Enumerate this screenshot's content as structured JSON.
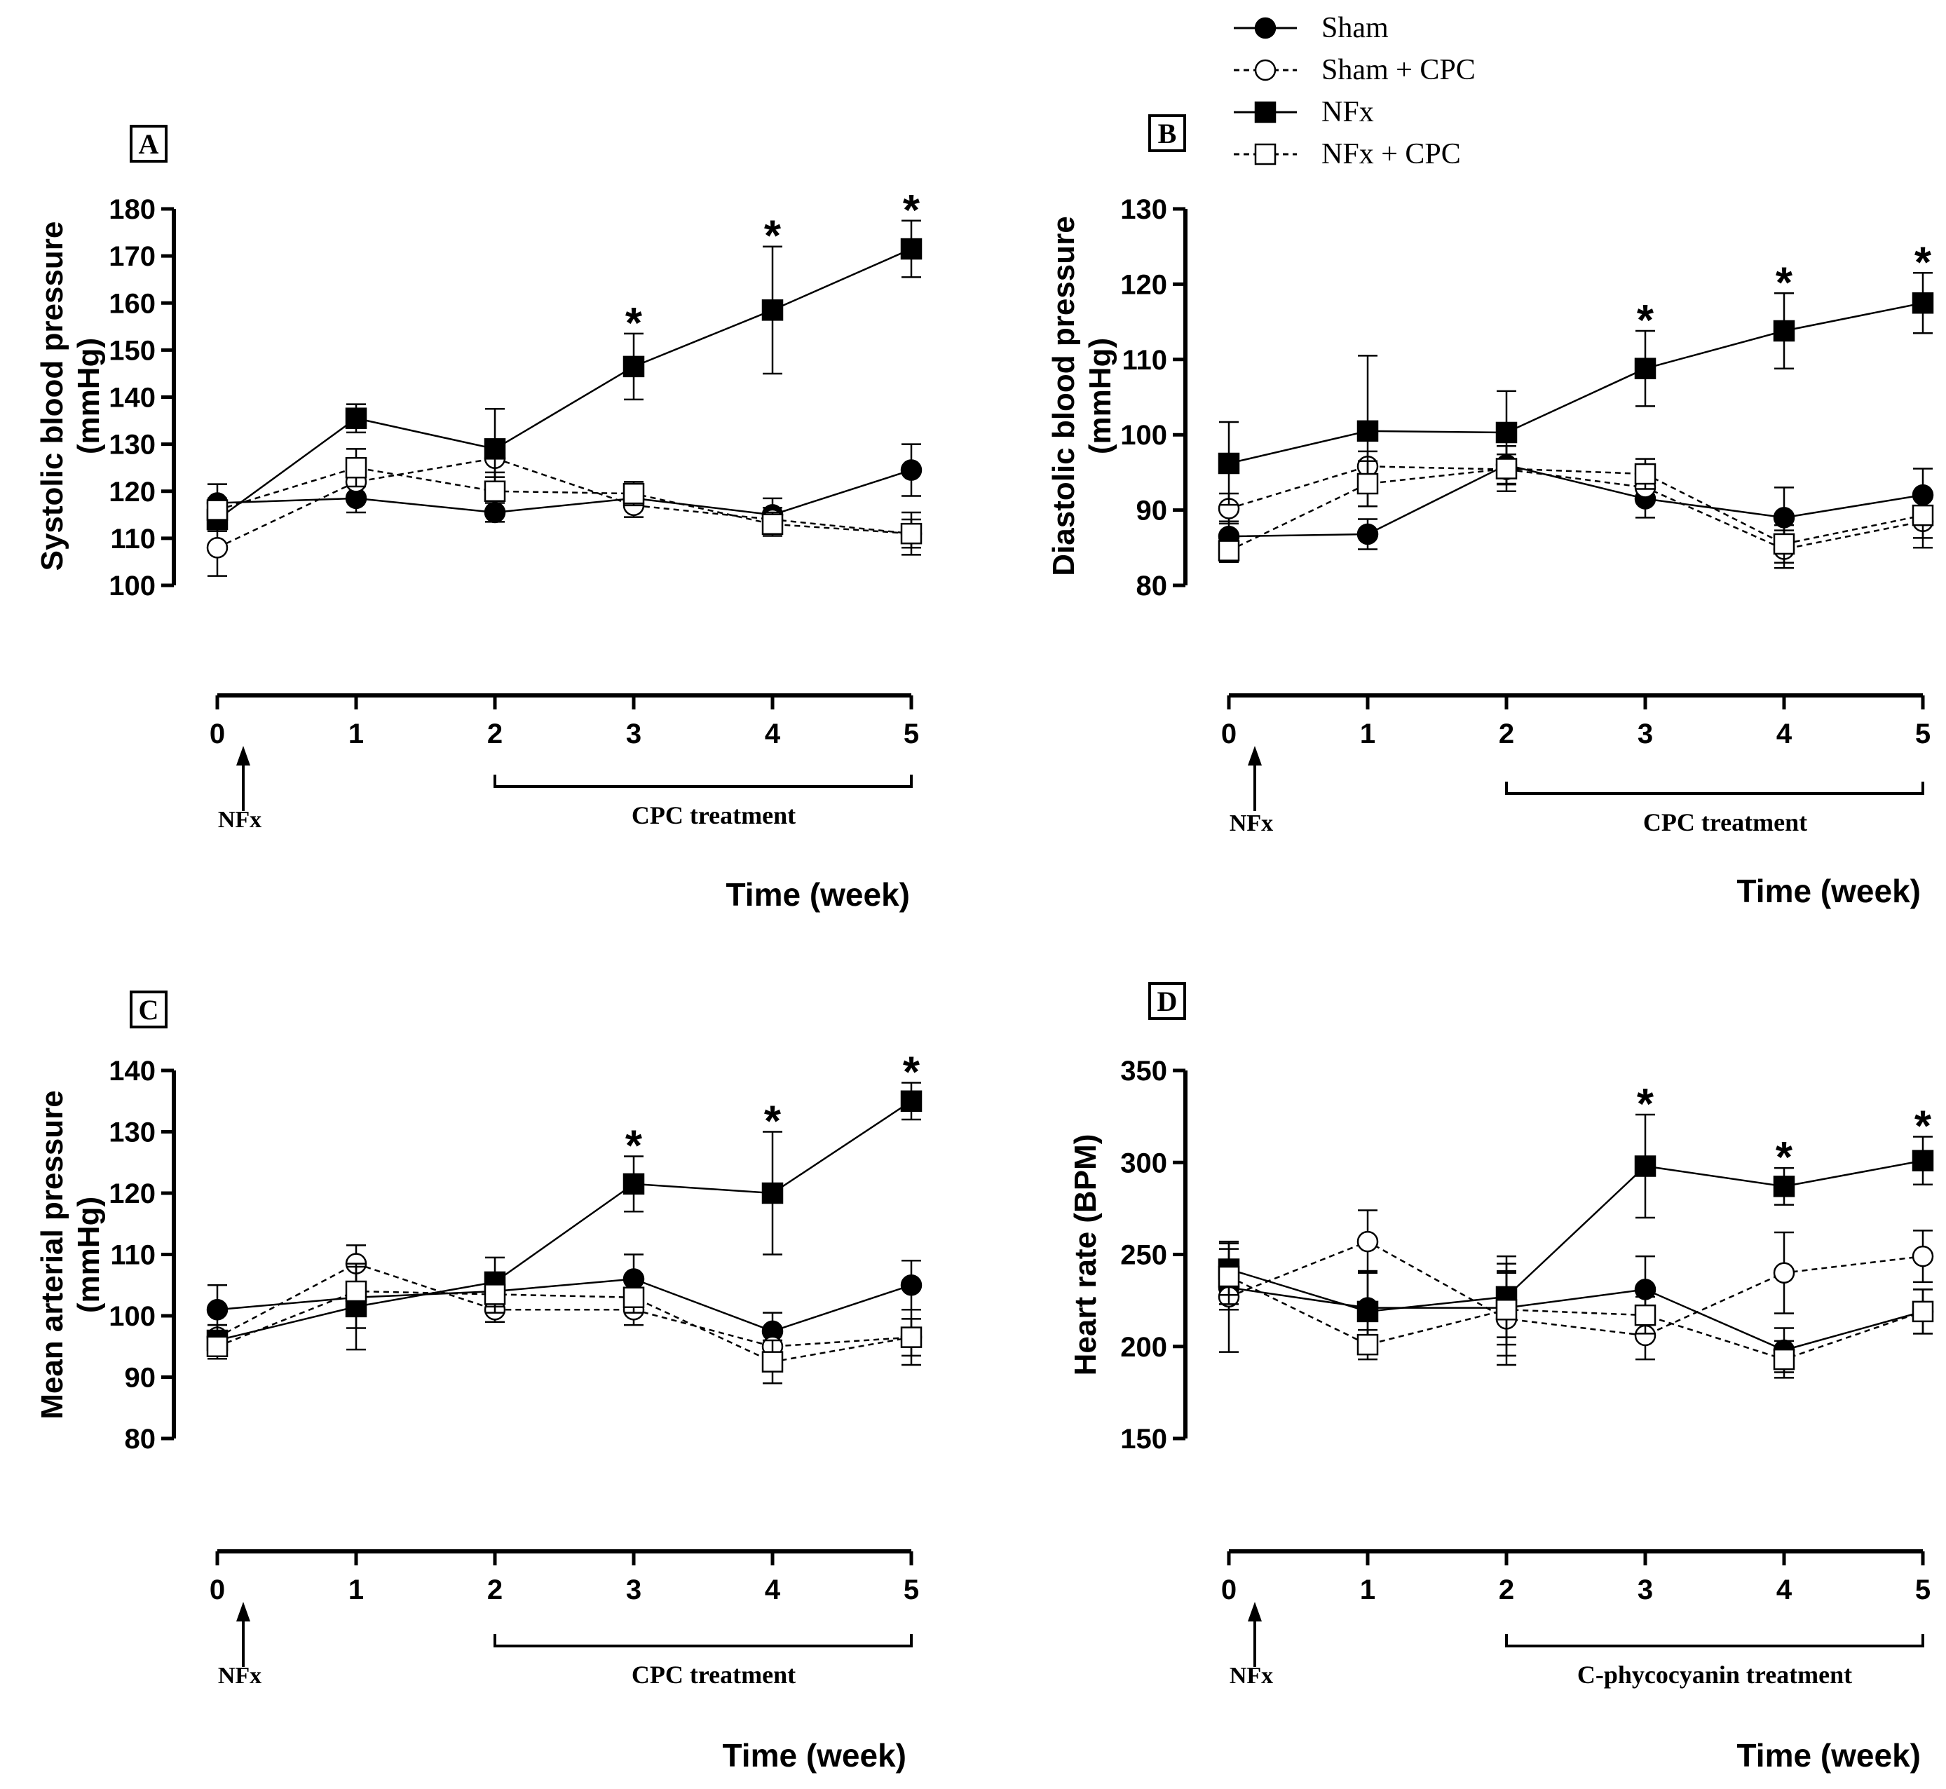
{
  "legend": [
    {
      "label": "Sham",
      "marker": "circle",
      "fill": "#000000",
      "line": "solid"
    },
    {
      "label": "Sham + CPC",
      "marker": "circle",
      "fill": "#ffffff",
      "line": "dashed"
    },
    {
      "label": "NFx",
      "marker": "square",
      "fill": "#000000",
      "line": "solid"
    },
    {
      "label": "NFx + CPC",
      "marker": "square",
      "fill": "#ffffff",
      "line": "dashed"
    }
  ],
  "annotations": {
    "nfx_label": "NFx",
    "star": "*"
  },
  "chart_data": [
    {
      "panel": "A",
      "type": "line",
      "ylabel": "Systolic blood pressure (mmHg)",
      "ylabel_lines": [
        "Systolic blood pressure",
        "(mmHg)"
      ],
      "xlabel": "Time (week)",
      "ylim": [
        100,
        180
      ],
      "yticks": [
        100,
        110,
        120,
        130,
        140,
        150,
        160,
        170,
        180
      ],
      "x": [
        0,
        1,
        2,
        3,
        4,
        5
      ],
      "treatment_label": "CPC treatment",
      "series": [
        {
          "name": "Sham",
          "values": [
            117.5,
            118.5,
            115.5,
            118.5,
            115,
            124.5
          ],
          "err": [
            4,
            3,
            2,
            2,
            3.5,
            5.5
          ]
        },
        {
          "name": "Sham + CPC",
          "values": [
            108,
            122,
            127,
            117,
            114,
            111
          ],
          "err": [
            6,
            3,
            4,
            2.5,
            2.5,
            3
          ]
        },
        {
          "name": "NFx",
          "values": [
            114,
            135.5,
            129,
            146.5,
            158.5,
            171.5
          ],
          "err": [
            2.5,
            3,
            8.5,
            7,
            13.5,
            6
          ]
        },
        {
          "name": "NFx + CPC",
          "values": [
            116,
            125,
            120,
            119.5,
            113,
            111
          ],
          "err": [
            2.5,
            4,
            4,
            2.5,
            2.5,
            4.5
          ]
        }
      ],
      "significant": [
        3,
        4,
        5
      ]
    },
    {
      "panel": "B",
      "type": "line",
      "ylabel": "Diastolic blood pressure (mmHg)",
      "ylabel_lines": [
        "Diastolic blood pressure",
        "(mmHg)"
      ],
      "xlabel": "Time (week)",
      "ylim": [
        80,
        130
      ],
      "yticks": [
        80,
        90,
        100,
        110,
        120,
        130
      ],
      "x": [
        0,
        1,
        2,
        3,
        4,
        5
      ],
      "treatment_label": "CPC treatment",
      "series": [
        {
          "name": "Sham",
          "values": [
            86.5,
            86.8,
            96,
            91.5,
            89,
            92
          ],
          "err": [
            2,
            2,
            2.5,
            2.5,
            4,
            3.5
          ]
        },
        {
          "name": "Sham + CPC",
          "values": [
            90.2,
            95.8,
            95.4,
            93,
            84.8,
            88.5
          ],
          "err": [
            2,
            2,
            2,
            2,
            2.5,
            3.5
          ]
        },
        {
          "name": "NFx",
          "values": [
            96.2,
            100.5,
            100.3,
            108.8,
            113.8,
            117.5
          ],
          "err": [
            5.5,
            10,
            5.5,
            5,
            5,
            4
          ]
        },
        {
          "name": "NFx + CPC",
          "values": [
            84.6,
            93.5,
            95.5,
            94.8,
            85.5,
            89.3
          ],
          "err": [
            1.5,
            3,
            3,
            2,
            2.5,
            3
          ]
        }
      ],
      "significant": [
        3,
        4,
        5
      ]
    },
    {
      "panel": "C",
      "type": "line",
      "ylabel": "Mean arterial pressure (mmHg)",
      "ylabel_lines": [
        "Mean arterial pressure",
        "(mmHg)"
      ],
      "xlabel": "Time (week)",
      "ylim": [
        80,
        140
      ],
      "yticks": [
        80,
        90,
        100,
        110,
        120,
        130,
        140
      ],
      "x": [
        0,
        1,
        2,
        3,
        4,
        5
      ],
      "treatment_label": "CPC treatment",
      "series": [
        {
          "name": "Sham",
          "values": [
            101,
            103,
            104,
            106,
            97.5,
            105
          ],
          "err": [
            4,
            5,
            2.5,
            4,
            3,
            4
          ]
        },
        {
          "name": "Sham + CPC",
          "values": [
            96.5,
            108.5,
            101,
            101,
            95,
            96.5
          ],
          "err": [
            2,
            3,
            2,
            2.5,
            2,
            3
          ]
        },
        {
          "name": "NFx",
          "values": [
            96,
            101.5,
            105.5,
            121.5,
            120,
            135
          ],
          "err": [
            2.5,
            7,
            4,
            4.5,
            10,
            3
          ]
        },
        {
          "name": "NFx + CPC",
          "values": [
            95,
            104,
            103.5,
            103,
            92.5,
            96.5
          ],
          "err": [
            2,
            4,
            3,
            2.5,
            3.5,
            4.5
          ]
        }
      ],
      "significant": [
        3,
        4,
        5
      ]
    },
    {
      "panel": "D",
      "type": "line",
      "ylabel": "Heart rate (BPM)",
      "ylabel_lines": [
        "Heart rate (BPM)"
      ],
      "xlabel": "Time (week)",
      "ylim": [
        150,
        350
      ],
      "yticks": [
        150,
        200,
        250,
        300,
        350
      ],
      "x": [
        0,
        1,
        2,
        3,
        4,
        5
      ],
      "treatment_label": "C-phycocyanin treatment",
      "series": [
        {
          "name": "Sham",
          "values": [
            232,
            221,
            221,
            231,
            198,
            219
          ],
          "err": [
            12,
            20,
            20,
            18,
            12,
            12
          ]
        },
        {
          "name": "Sham + CPC",
          "values": [
            227,
            257,
            215,
            206,
            240,
            249
          ],
          "err": [
            30,
            17,
            25,
            13,
            22,
            14
          ]
        },
        {
          "name": "NFx",
          "values": [
            242,
            219,
            227,
            298,
            287,
            301
          ],
          "err": [
            14,
            22,
            22,
            28,
            10,
            13
          ]
        },
        {
          "name": "NFx + CPC",
          "values": [
            238,
            201,
            220,
            217,
            193,
            219
          ],
          "err": [
            15,
            8,
            25,
            10,
            10,
            12
          ]
        }
      ],
      "significant": [
        3,
        4,
        5
      ]
    }
  ]
}
